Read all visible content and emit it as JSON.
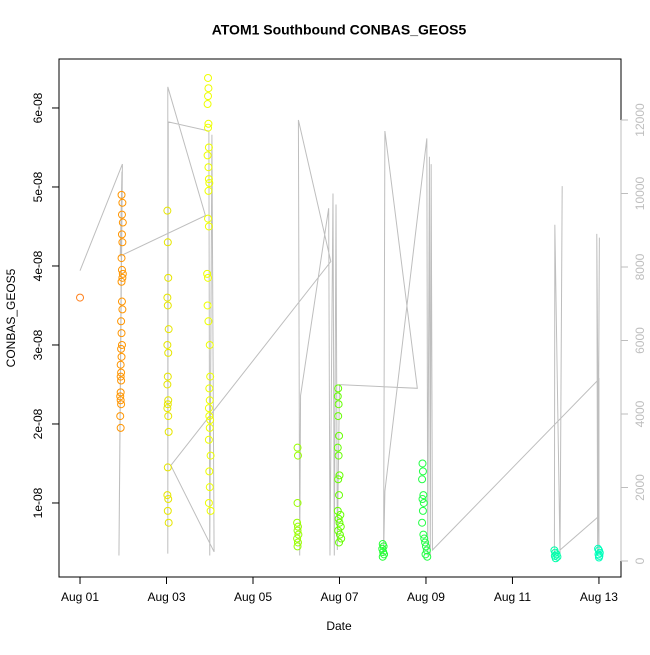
{
  "chart_data": {
    "type": "scatter",
    "title": "ATOM1 Southbound CONBAS_GEOS5",
    "x_label": "Date",
    "y_label": "CONBAS_GEOS5",
    "xlim": [
      -0.486,
      12.51
    ],
    "ylim": [
      6.3e-10,
      6.62e-08
    ],
    "y2lim": [
      -435,
      13660
    ],
    "xticks": [
      {
        "value": 0,
        "label": "Aug 01"
      },
      {
        "value": 2,
        "label": "Aug 03"
      },
      {
        "value": 4,
        "label": "Aug 05"
      },
      {
        "value": 6,
        "label": "Aug 07"
      },
      {
        "value": 8,
        "label": "Aug 09"
      },
      {
        "value": 10,
        "label": "Aug 11"
      },
      {
        "value": 12,
        "label": "Aug 13"
      }
    ],
    "yticks": [
      {
        "value": 1e-08,
        "label": "1e-08"
      },
      {
        "value": 2e-08,
        "label": "2e-08"
      },
      {
        "value": 3e-08,
        "label": "3e-08"
      },
      {
        "value": 4e-08,
        "label": "4e-08"
      },
      {
        "value": 5e-08,
        "label": "5e-08"
      },
      {
        "value": 6e-08,
        "label": "6e-08"
      }
    ],
    "y2ticks": [
      0,
      2000,
      4000,
      6000,
      8000,
      10000,
      12000
    ],
    "y2_color": "#bebebe",
    "series": [
      {
        "color": "#ff7f1a",
        "x": [
          0
        ],
        "values": [
          3.6e-08
        ]
      },
      {
        "color": "#ff9500",
        "x": [
          0.96,
          0.98,
          0.97,
          0.99,
          0.97,
          0.98,
          0.96,
          0.97,
          0.99,
          0.98,
          0.96,
          0.97,
          0.98,
          0.95,
          0.96,
          0.97,
          0.95,
          0.96,
          0.94,
          0.95,
          0.94,
          0.95,
          0.94,
          0.93,
          0.94,
          0.95,
          0.93,
          0.94
        ],
        "values": [
          4.9e-08,
          4.8e-08,
          4.65e-08,
          4.55e-08,
          4.4e-08,
          4.3e-08,
          4.1e-08,
          3.95e-08,
          3.9e-08,
          3.85e-08,
          3.8e-08,
          3.55e-08,
          3.45e-08,
          3.3e-08,
          3.15e-08,
          3e-08,
          2.95e-08,
          2.85e-08,
          2.75e-08,
          2.65e-08,
          2.6e-08,
          2.55e-08,
          2.4e-08,
          2.35e-08,
          2.3e-08,
          2.25e-08,
          2.1e-08,
          1.95e-08
        ]
      },
      {
        "color": "#e6e600",
        "x": [
          2.02,
          2.03,
          2.04,
          2.02,
          2.03,
          2.05,
          2.02,
          2.04,
          2.03,
          2.02,
          2.04,
          2.03,
          2.02,
          2.04,
          2.05,
          2.03,
          2.02,
          2.04,
          2.03,
          2.05
        ],
        "values": [
          4.7e-08,
          4.3e-08,
          3.85e-08,
          3.6e-08,
          3.5e-08,
          3.2e-08,
          3e-08,
          2.9e-08,
          2.6e-08,
          2.5e-08,
          2.3e-08,
          2.25e-08,
          2.2e-08,
          2.1e-08,
          1.9e-08,
          1.45e-08,
          1.1e-08,
          1.05e-08,
          9e-09,
          7.5e-09
        ]
      },
      {
        "color": "#eeff00",
        "x": [
          2.96,
          2.97,
          2.96,
          2.95,
          2.97,
          2.96,
          2.98,
          2.95,
          2.97,
          2.98,
          2.99,
          2.97,
          2.96,
          2.98,
          2.94,
          2.96,
          2.95,
          2.97,
          3.0,
          3.01,
          2.99,
          3.0,
          2.98,
          2.99,
          3.01,
          3.0,
          2.98,
          3.02,
          2.99,
          3.0,
          2.98,
          3.02
        ],
        "values": [
          6.38e-08,
          6.25e-08,
          6.15e-08,
          6.05e-08,
          5.8e-08,
          5.75e-08,
          5.5e-08,
          5.4e-08,
          5.25e-08,
          5.1e-08,
          5.05e-08,
          4.95e-08,
          4.6e-08,
          4.5e-08,
          3.9e-08,
          3.85e-08,
          3.5e-08,
          3.3e-08,
          3e-08,
          2.6e-08,
          2.45e-08,
          2.3e-08,
          2.2e-08,
          2.1e-08,
          2.05e-08,
          1.95e-08,
          1.8e-08,
          1.6e-08,
          1.4e-08,
          1.2e-08,
          1e-08,
          9e-09
        ]
      },
      {
        "color": "#99ff00",
        "x": [
          5.03,
          5.04,
          5.03,
          5.02,
          5.04,
          5.03,
          5.05,
          5.02,
          5.04,
          5.03
        ],
        "values": [
          1.7e-08,
          1.6e-08,
          1e-08,
          7.5e-09,
          7e-09,
          6.5e-09,
          6e-09,
          5.5e-09,
          5e-09,
          4.5e-09
        ]
      },
      {
        "color": "#66ff00",
        "x": [
          5.97,
          5.96,
          5.98,
          5.97,
          5.99,
          5.96,
          5.98,
          6.0,
          5.97,
          5.99,
          5.96,
          6.02,
          5.98,
          6.0,
          6.03,
          5.97,
          6.01,
          6.04,
          5.99
        ],
        "values": [
          2.45e-08,
          2.35e-08,
          2.25e-08,
          2.1e-08,
          1.85e-08,
          1.7e-08,
          1.6e-08,
          1.35e-08,
          1.3e-08,
          1.1e-08,
          9e-09,
          8.5e-09,
          8e-09,
          7.5e-09,
          7e-09,
          6.5e-09,
          6e-09,
          5.5e-09,
          5e-09
        ]
      },
      {
        "color": "#22ff33",
        "x": [
          7.0,
          7.02,
          6.99,
          7.01,
          7.03,
          7.0
        ],
        "values": [
          4.8e-09,
          4.5e-09,
          4.2e-09,
          3.8e-09,
          3.5e-09,
          3.2e-09
        ]
      },
      {
        "color": "#22ff44",
        "x": [
          7.92,
          7.93,
          7.91,
          7.94,
          7.92,
          7.95,
          7.93,
          7.91,
          7.94,
          7.96,
          7.98,
          8.0,
          8.02,
          7.99,
          8.03
        ],
        "values": [
          1.5e-08,
          1.4e-08,
          1.3e-08,
          1.1e-08,
          1.05e-08,
          1e-08,
          9e-09,
          7.5e-09,
          6e-09,
          5.5e-09,
          5e-09,
          4.5e-09,
          4e-09,
          3.5e-09,
          3.2e-09
        ]
      },
      {
        "color": "#00ffaa",
        "x": [
          10.97,
          10.99,
          11.02,
          10.98,
          11.04,
          11.0
        ],
        "values": [
          4e-09,
          3.7e-09,
          3.5e-09,
          3.3e-09,
          3.2e-09,
          3e-09
        ]
      },
      {
        "color": "#00ffbb",
        "x": [
          11.98,
          12.0,
          12.02,
          11.99,
          12.01,
          12.0
        ],
        "values": [
          4.2e-09,
          4e-09,
          3.7e-09,
          3.5e-09,
          3.3e-09,
          3.1e-09
        ]
      }
    ],
    "line": {
      "axis": "y2",
      "color": "#bebebe",
      "x": [
        0.0,
        0.98,
        0.9,
        0.97,
        0.93,
        2.9,
        2.03,
        2.03,
        2.04,
        2.98,
        3.0,
        3.05,
        3.1,
        2.1,
        5.8,
        5.05,
        5.08,
        5.1,
        5.75,
        5.78,
        5.85,
        5.88,
        5.92,
        5.95,
        6.0,
        7.8,
        7.05,
        7.02,
        7.05,
        8.02,
        8.04,
        8.08,
        8.1,
        8.12,
        8.15,
        12.0,
        12.0,
        11.95,
        11.97,
        12.01,
        11.98,
        11.1,
        11.15,
        11.1,
        10.98,
        10.97
      ],
      "values": [
        7900,
        10800,
        150,
        10600,
        8300,
        9400,
        12900,
        200,
        11950,
        11700,
        150,
        11600,
        250,
        2600,
        8150,
        12000,
        150,
        4500,
        9600,
        150,
        10000,
        150,
        9700,
        300,
        4800,
        4700,
        11700,
        150,
        1900,
        11500,
        150,
        11000,
        150,
        10800,
        300,
        4950,
        200,
        8900,
        150,
        8800,
        1200,
        300,
        10200,
        200,
        9150,
        150
      ]
    }
  }
}
